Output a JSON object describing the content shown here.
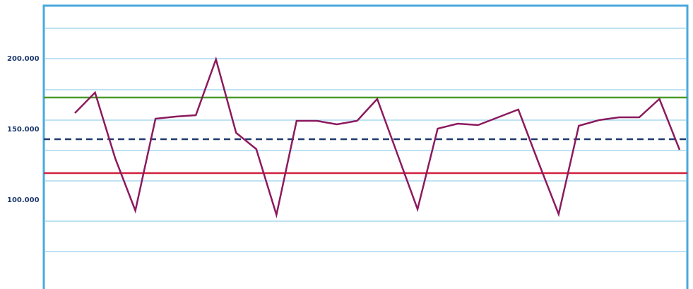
{
  "chart_data": {
    "type": "line",
    "categories": [
      null,
      null,
      null,
      null,
      null,
      null,
      null,
      null,
      null,
      null,
      null,
      null,
      null,
      null,
      null,
      null,
      null,
      null,
      null,
      null,
      null,
      null,
      null,
      null,
      null,
      null,
      null,
      null,
      null,
      null,
      null
    ],
    "series": [
      {
        "color": "#8b1a5e",
        "values": [
          161500,
          176000,
          129500,
          92500,
          157500,
          159000,
          160000,
          199500,
          147500,
          136000,
          89500,
          156000,
          156000,
          153500,
          156000,
          171500,
          132500,
          93500,
          150500,
          154000,
          153000,
          158500,
          164000,
          126500,
          90000,
          152500,
          156500,
          158500,
          158500,
          171500,
          135500
        ]
      }
    ],
    "reference_lines": [
      {
        "value": 172500,
        "color": "#4a9a2a",
        "dashed": false
      },
      {
        "value": 143000,
        "color": "#1f3a6e",
        "dashed": true
      },
      {
        "value": 119000,
        "color": "#d0223e",
        "dashed": false
      }
    ],
    "ylim": [
      37000,
      237500
    ],
    "yticks": [
      {
        "value": 100000,
        "label": "100.000"
      },
      {
        "value": 150000,
        "label": "150.000"
      },
      {
        "value": 200000,
        "label": "200.000"
      }
    ],
    "gridlines": [
      63500,
      85000,
      113500,
      135000,
      156500,
      178000,
      200000,
      221500
    ],
    "grid": true
  }
}
